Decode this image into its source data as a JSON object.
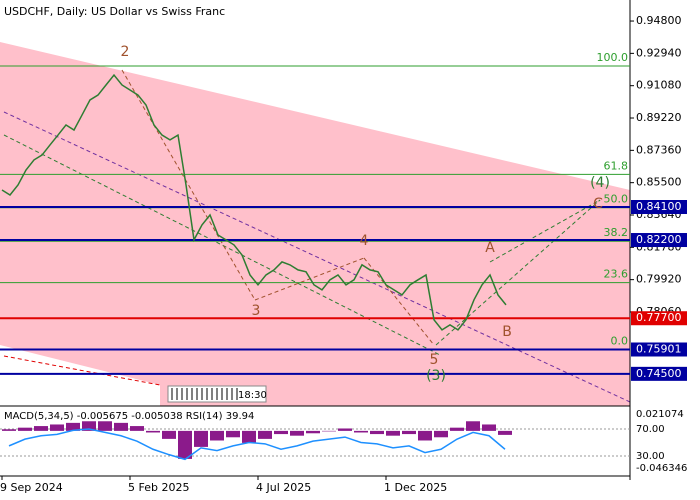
{
  "chart_data": {
    "type": "line",
    "title": "USDCHF, Daily:  US Dollar vs Swiss Franc",
    "color": "#2e7d32",
    "categories": [
      "9 Sep 2024",
      null,
      null,
      null,
      null,
      null,
      null,
      null,
      null,
      null,
      null,
      null,
      null,
      null,
      null,
      null,
      "5 Feb 2025",
      null,
      null,
      null,
      null,
      null,
      null,
      null,
      null,
      null,
      null,
      null,
      null,
      null,
      null,
      null,
      "4 Jul 2025",
      null,
      null,
      null,
      null,
      null,
      null,
      null,
      null,
      null,
      null,
      null,
      null,
      null,
      null,
      null,
      "1 Dec 2025",
      null,
      null,
      null,
      null,
      null,
      null,
      null,
      null,
      null,
      null,
      null,
      null,
      null,
      null,
      null
    ],
    "values": [
      0.8508,
      0.8479,
      0.8537,
      0.8623,
      0.8681,
      0.8709,
      0.8767,
      0.8824,
      0.8882,
      0.8853,
      0.8939,
      0.9026,
      0.9054,
      0.9112,
      0.9169,
      0.9112,
      0.9083,
      0.9054,
      0.8997,
      0.8882,
      0.8824,
      0.8796,
      0.8824,
      0.8537,
      0.8221,
      0.8307,
      0.8364,
      0.8249,
      0.8221,
      0.8192,
      0.8134,
      0.8019,
      0.7962,
      0.8019,
      0.8048,
      0.8094,
      0.8077,
      0.8048,
      0.8037,
      0.7962,
      0.7933,
      0.7991,
      0.8019,
      0.7962,
      0.7991,
      0.8077,
      0.8048,
      0.8037,
      0.7962,
      0.7933,
      0.7904,
      0.7962,
      0.7991,
      0.8019,
      0.7761,
      0.7703,
      0.7732,
      0.7703,
      0.7761,
      0.7876,
      0.7962,
      0.8019,
      0.7904,
      0.7847
    ],
    "ylim": [
      0.7265,
      0.9555
    ],
    "yticks": [
      {
        "value": 0.948,
        "label": "0.94800"
      },
      {
        "value": 0.9294,
        "label": "0.92940"
      },
      {
        "value": 0.9108,
        "label": "0.91080"
      },
      {
        "value": 0.8922,
        "label": "0.89220"
      },
      {
        "value": 0.8736,
        "label": "0.87360"
      },
      {
        "value": 0.855,
        "label": "0.85500"
      },
      {
        "value": 0.8364,
        "label": "0.83640"
      },
      {
        "value": 0.8178,
        "label": "0.81780"
      },
      {
        "value": 0.7992,
        "label": "0.79920"
      },
      {
        "value": 0.7806,
        "label": "0.78060"
      }
    ],
    "levels": [
      {
        "value": 0.841,
        "label": "0.84100",
        "color": "#0000a0"
      },
      {
        "value": 0.822,
        "label": "0.82200",
        "color": "#0000a0"
      },
      {
        "value": 0.777,
        "label": "0.77700",
        "color": "#e00000"
      },
      {
        "value": 0.75901,
        "label": "0.75901",
        "color": "#0000a0"
      },
      {
        "value": 0.745,
        "label": "0.74500",
        "color": "#0000a0"
      }
    ],
    "fib": [
      {
        "label": "100.0",
        "price": 0.9221
      },
      {
        "label": "61.8",
        "price": 0.8598
      },
      {
        "label": "50.0",
        "price": 0.8406
      },
      {
        "label": "38.2",
        "price": 0.8213
      },
      {
        "label": "23.6",
        "price": 0.7975
      },
      {
        "label": "0.0",
        "price": 0.759
      }
    ],
    "wave_labels": [
      "2",
      "3",
      "4",
      "5",
      "(3)",
      "(4)",
      "A",
      "B",
      "C"
    ],
    "time_label": "18:30",
    "indicator": {
      "title": "MACD(5,34,5) -0.005675 -0.005038 RSI(14) 39.94",
      "macd_ticks": [
        0.021074,
        -0.046346
      ],
      "rsi_ticks": [
        {
          "value": 70,
          "label": "70.00"
        },
        {
          "value": 30,
          "label": "30.00"
        }
      ],
      "macd": [
        0.002,
        0.004,
        0.006,
        0.008,
        0.01,
        0.012,
        0.012,
        0.01,
        0.006,
        -0.002,
        -0.01,
        -0.035,
        -0.02,
        -0.012,
        -0.008,
        -0.015,
        -0.01,
        -0.004,
        -0.006,
        -0.003,
        0.0,
        0.003,
        -0.002,
        -0.004,
        -0.006,
        -0.004,
        -0.012,
        -0.008,
        0.004,
        0.012,
        0.008,
        -0.005
      ],
      "rsi": [
        45,
        55,
        60,
        62,
        68,
        70,
        65,
        60,
        52,
        40,
        32,
        25,
        42,
        38,
        45,
        50,
        48,
        40,
        45,
        52,
        55,
        58,
        50,
        48,
        42,
        45,
        35,
        40,
        55,
        65,
        60,
        40
      ]
    }
  }
}
